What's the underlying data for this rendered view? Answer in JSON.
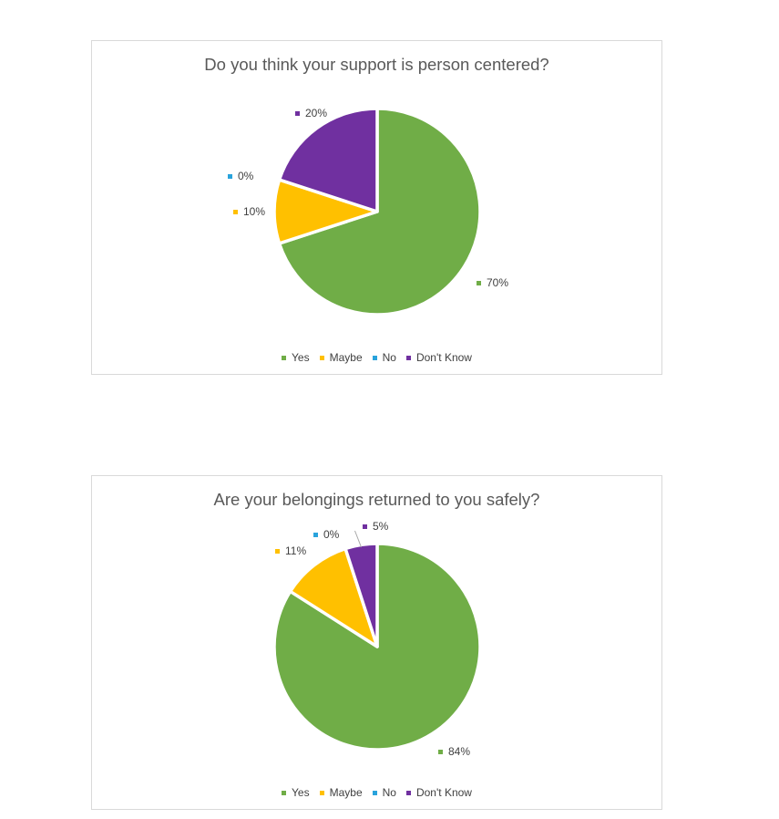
{
  "chart_data": [
    {
      "type": "pie",
      "title": "Do you think your support is person centered?",
      "categories": [
        "Yes",
        "Maybe",
        "No",
        "Don't Know"
      ],
      "values": [
        70,
        10,
        0,
        20
      ],
      "labels": [
        "70%",
        "10%",
        "0%",
        "20%"
      ],
      "colors": [
        "#70AD47",
        "#FFC000",
        "#29A3DC",
        "#7030A0"
      ],
      "legend_position": "bottom",
      "start_angle": 0,
      "direction": "clockwise"
    },
    {
      "type": "pie",
      "title": "Are your belongings returned to you safely?",
      "categories": [
        "Yes",
        "Maybe",
        "No",
        "Don't Know"
      ],
      "values": [
        84,
        11,
        0,
        5
      ],
      "labels": [
        "84%",
        "11%",
        "0%",
        "5%"
      ],
      "colors": [
        "#70AD47",
        "#FFC000",
        "#29A3DC",
        "#7030A0"
      ],
      "legend_position": "bottom",
      "start_angle": 0,
      "direction": "clockwise"
    }
  ],
  "styles": {
    "title_color": "#595959",
    "label_color": "#404040",
    "card_border_color": "#d9d9d9",
    "leader_line_color": "#a6a6a6"
  }
}
